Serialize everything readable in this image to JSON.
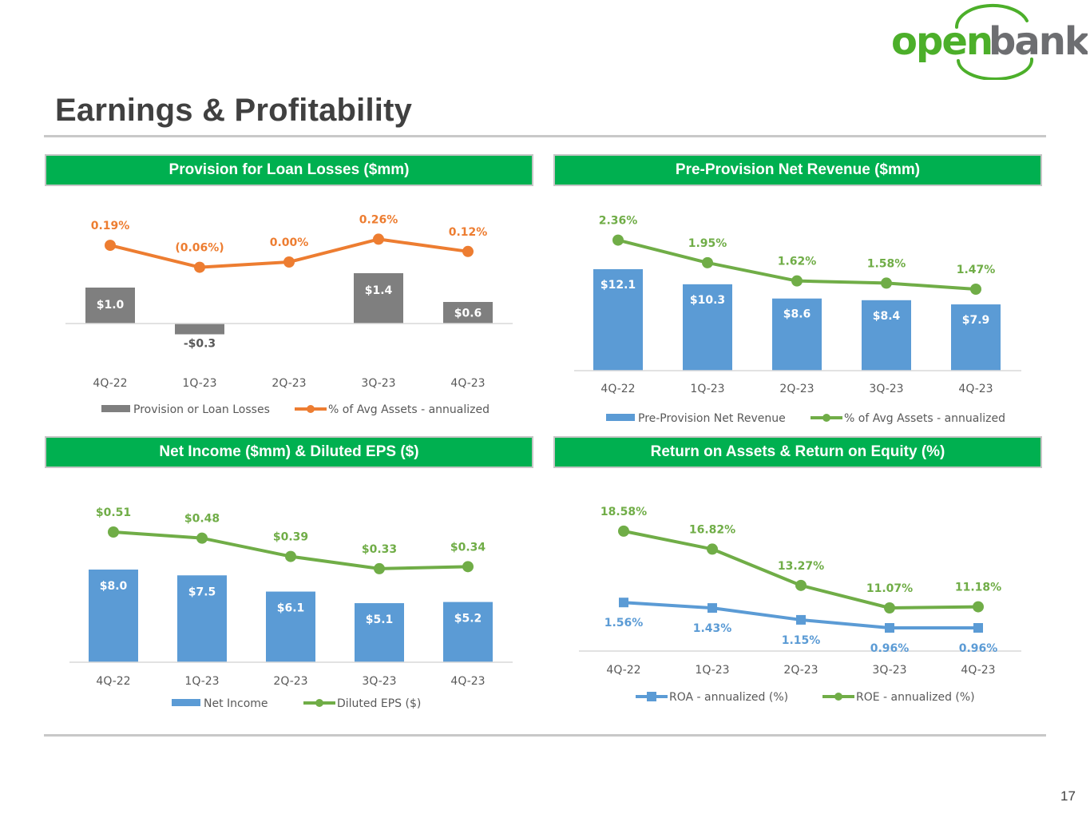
{
  "page": {
    "title": "Earnings & Profitability",
    "page_number": "17"
  },
  "logo": {
    "part1": "open",
    "part2": "bank",
    "colors": {
      "open": "#4caf2a",
      "bank": "#6d6e71",
      "swoosh": "#4caf2a"
    }
  },
  "panels": [
    {
      "title": "Provision for Loan Losses ($mm)"
    },
    {
      "title": "Pre-Provision Net Revenue ($mm)"
    },
    {
      "title": "Net Income ($mm) & Diluted EPS ($)"
    },
    {
      "title": "Return on Assets & Return on Equity (%)"
    }
  ],
  "chart_data": [
    {
      "type": "bar+line",
      "title": "Provision for Loan Losses ($mm)",
      "categories": [
        "4Q-22",
        "1Q-23",
        "2Q-23",
        "3Q-23",
        "4Q-23"
      ],
      "bar_series": {
        "name": "Provision or Loan Losses",
        "values": [
          1.0,
          -0.3,
          0.0,
          1.4,
          0.6
        ],
        "labels": [
          "$1.0",
          "-$0.3",
          "",
          "$1.4",
          "$0.6"
        ],
        "color": "#7f7f7f"
      },
      "line_series": {
        "name": "% of Avg Assets - annualized",
        "values": [
          0.19,
          -0.06,
          0.0,
          0.26,
          0.12
        ],
        "labels": [
          "0.19%",
          "(0.06%)",
          "0.00%",
          "0.26%",
          "0.12%"
        ],
        "color": "#ed7d31"
      }
    },
    {
      "type": "bar+line",
      "title": "Pre-Provision Net Revenue ($mm)",
      "categories": [
        "4Q-22",
        "1Q-23",
        "2Q-23",
        "3Q-23",
        "4Q-23"
      ],
      "bar_series": {
        "name": "Pre-Provision Net Revenue",
        "values": [
          12.1,
          10.3,
          8.6,
          8.4,
          7.9
        ],
        "labels": [
          "$12.1",
          "$10.3",
          "$8.6",
          "$8.4",
          "$7.9"
        ],
        "color": "#5b9bd5"
      },
      "line_series": {
        "name": "% of Avg Assets - annualized",
        "values": [
          2.36,
          1.95,
          1.62,
          1.58,
          1.47
        ],
        "labels": [
          "2.36%",
          "1.95%",
          "1.62%",
          "1.58%",
          "1.47%"
        ],
        "color": "#70ad47"
      }
    },
    {
      "type": "bar+line",
      "title": "Net Income ($mm) & Diluted EPS ($)",
      "categories": [
        "4Q-22",
        "1Q-23",
        "2Q-23",
        "3Q-23",
        "4Q-23"
      ],
      "bar_series": {
        "name": "Net Income",
        "values": [
          8.0,
          7.5,
          6.1,
          5.1,
          5.2
        ],
        "labels": [
          "$8.0",
          "$7.5",
          "$6.1",
          "$5.1",
          "$5.2"
        ],
        "color": "#5b9bd5"
      },
      "line_series": {
        "name": "Diluted EPS ($)",
        "values": [
          0.51,
          0.48,
          0.39,
          0.33,
          0.34
        ],
        "labels": [
          "$0.51",
          "$0.48",
          "$0.39",
          "$0.33",
          "$0.34"
        ],
        "color": "#70ad47"
      }
    },
    {
      "type": "line",
      "title": "Return on Assets & Return on Equity (%)",
      "categories": [
        "4Q-22",
        "1Q-23",
        "2Q-23",
        "3Q-23",
        "4Q-23"
      ],
      "series": [
        {
          "name": "ROA - annualized (%)",
          "values": [
            1.56,
            1.43,
            1.15,
            0.96,
            0.96
          ],
          "labels": [
            "1.56%",
            "1.43%",
            "1.15%",
            "0.96%",
            "0.96%"
          ],
          "color": "#5b9bd5",
          "marker": "square"
        },
        {
          "name": "ROE - annualized (%)",
          "values": [
            18.58,
            16.82,
            13.27,
            11.07,
            11.18
          ],
          "labels": [
            "18.58%",
            "16.82%",
            "13.27%",
            "11.07%",
            "11.18%"
          ],
          "color": "#70ad47",
          "marker": "circle"
        }
      ]
    }
  ]
}
